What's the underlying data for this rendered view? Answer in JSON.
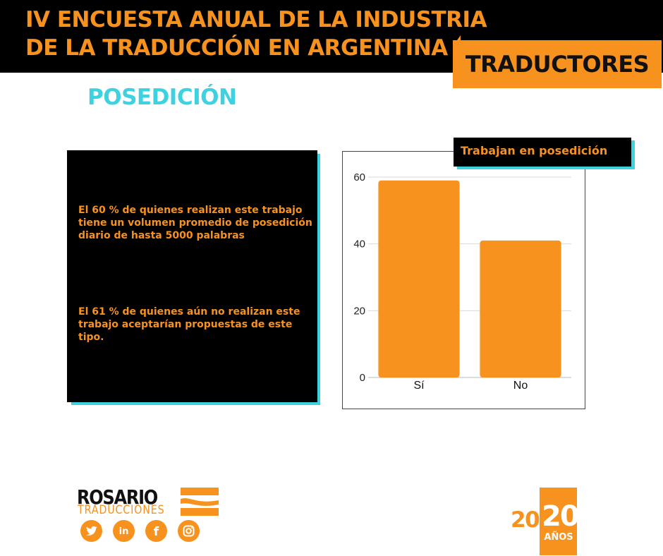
{
  "header": {
    "title_line1": "IV ENCUESTA ANUAL DE LA INDUSTRIA",
    "title_line2": "DE LA TRADUCCIÓN EN ARGENTINA",
    "badge": "TRADUCTORES"
  },
  "section_title": "POSEDICIÓN",
  "stats": [
    "El 60 % de quienes realizan este trabajo tiene un volumen promedio de posedición diario de hasta 5000 palabras",
    "El 61 % de quienes aún no realizan este trabajo aceptarían propuestas de este tipo."
  ],
  "chart_data": {
    "type": "bar",
    "title": "Trabajan en posedición",
    "categories": [
      "Sí",
      "No"
    ],
    "values": [
      59,
      41
    ],
    "ylim": [
      0,
      60
    ],
    "yticks": [
      0,
      20,
      40,
      60
    ],
    "xlabel": "",
    "ylabel": "",
    "grid": true,
    "bar_color": "#f7921e"
  },
  "logo": {
    "name": "ROSARIO",
    "sub": "TRADUCCIONES"
  },
  "social": [
    {
      "name": "twitter-icon"
    },
    {
      "name": "linkedin-icon",
      "text": "in"
    },
    {
      "name": "facebook-icon",
      "text": "f"
    },
    {
      "name": "instagram-icon"
    }
  ],
  "anniversary": {
    "year_left": "20",
    "year_right": "20",
    "label": "AÑOS"
  },
  "colors": {
    "accent": "#f7921e",
    "cyan": "#3ed1e0",
    "black": "#000000"
  }
}
